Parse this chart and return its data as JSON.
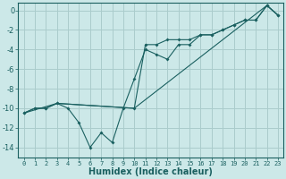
{
  "xlabel": "Humidex (Indice chaleur)",
  "xlim": [
    -0.5,
    23.5
  ],
  "ylim": [
    -15.0,
    0.8
  ],
  "yticks": [
    0,
    -2,
    -4,
    -6,
    -8,
    -10,
    -12,
    -14
  ],
  "xticks": [
    0,
    1,
    2,
    3,
    4,
    5,
    6,
    7,
    8,
    9,
    10,
    11,
    12,
    13,
    14,
    15,
    16,
    17,
    18,
    19,
    20,
    21,
    22,
    23
  ],
  "bg_color": "#cce8e8",
  "grid_color": "#aacccc",
  "line_color": "#1a6060",
  "line1_x": [
    0,
    1,
    2,
    3,
    4,
    5,
    6,
    7,
    8,
    9,
    10,
    11,
    12,
    13,
    14,
    15,
    16,
    17,
    18,
    19,
    20,
    21,
    22,
    23
  ],
  "line1_y": [
    -10.5,
    -10.0,
    -10.0,
    -9.5,
    -10.0,
    -11.5,
    -14.0,
    -12.5,
    -13.5,
    -10.0,
    -7.0,
    -4.0,
    -4.5,
    -5.0,
    -3.5,
    -3.5,
    -2.5,
    -2.5,
    -2.0,
    -1.5,
    -1.0,
    -1.0,
    0.5,
    -0.5
  ],
  "line2_x": [
    0,
    1,
    2,
    3,
    10,
    11,
    12,
    13,
    14,
    15,
    16,
    17,
    18,
    19,
    20,
    21,
    22,
    23
  ],
  "line2_y": [
    -10.5,
    -10.0,
    -10.0,
    -9.5,
    -10.0,
    -3.5,
    -3.5,
    -3.0,
    -3.0,
    -3.0,
    -2.5,
    -2.5,
    -2.0,
    -1.5,
    -1.0,
    -1.0,
    0.5,
    -0.5
  ],
  "line3_x": [
    0,
    3,
    10,
    22,
    23
  ],
  "line3_y": [
    -10.5,
    -9.5,
    -10.0,
    0.5,
    -0.5
  ]
}
